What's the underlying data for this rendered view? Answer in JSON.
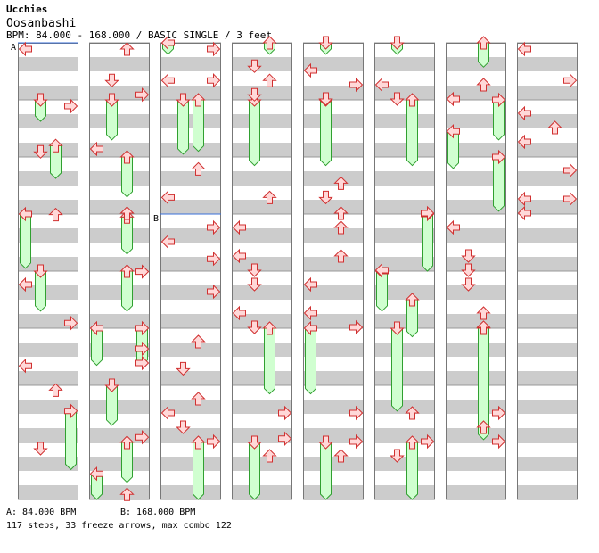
{
  "header": {
    "artist": "Ucchies",
    "title": "Oosanbashi",
    "meta": "BPM: 84.000 - 168.000 / BASIC SINGLE / 3 feet"
  },
  "footer": {
    "bpm_a": "A: 84.000 BPM",
    "bpm_b": "B: 168.000 BPM",
    "stats": "117 steps, 33 freeze arrows, max combo 122"
  },
  "chart_data": {
    "type": "step-chart",
    "columns": 8,
    "measures_per_column": 8,
    "beats_per_measure": 4,
    "lanes": [
      "left",
      "down",
      "up",
      "right"
    ],
    "bpm_changes": [
      {
        "label": "A",
        "bpm": 84.0,
        "column": 0,
        "measure": 0
      },
      {
        "label": "B",
        "bpm": 168.0,
        "column": 2,
        "measure": 3
      }
    ],
    "colors": {
      "arrow_fill": "#ffd8d8",
      "arrow_stroke": "#d03030",
      "freeze_fill": "#d0ffd0",
      "freeze_stroke": "#30a030",
      "stripe": "#cccccc",
      "bpm_marker": "#3a6fd8"
    },
    "freezes": [
      {
        "col": 0,
        "lane": 1,
        "start": 4.0,
        "end": 5.5
      },
      {
        "col": 0,
        "lane": 2,
        "start": 7.2,
        "end": 9.5
      },
      {
        "col": 0,
        "lane": 0,
        "start": 12.0,
        "end": 15.8
      },
      {
        "col": 0,
        "lane": 1,
        "start": 16.0,
        "end": 18.8
      },
      {
        "col": 0,
        "lane": 3,
        "start": 25.8,
        "end": 29.9
      },
      {
        "col": 1,
        "lane": 1,
        "start": 4.0,
        "end": 6.8
      },
      {
        "col": 1,
        "lane": 2,
        "start": 8.0,
        "end": 10.8
      },
      {
        "col": 1,
        "lane": 2,
        "start": 12.2,
        "end": 14.8
      },
      {
        "col": 1,
        "lane": 2,
        "start": 16.0,
        "end": 18.8
      },
      {
        "col": 1,
        "lane": 0,
        "start": 20.0,
        "end": 22.6
      },
      {
        "col": 1,
        "lane": 3,
        "start": 20.0,
        "end": 22.6
      },
      {
        "col": 1,
        "lane": 1,
        "start": 24.0,
        "end": 26.8
      },
      {
        "col": 1,
        "lane": 2,
        "start": 28.0,
        "end": 30.8
      },
      {
        "col": 1,
        "lane": 0,
        "start": 30.2,
        "end": 32.0
      },
      {
        "col": 2,
        "lane": 0,
        "start": 0.0,
        "end": 0.8
      },
      {
        "col": 2,
        "lane": 1,
        "start": 4.0,
        "end": 7.8
      },
      {
        "col": 2,
        "lane": 2,
        "start": 4.0,
        "end": 7.6
      },
      {
        "col": 2,
        "lane": 2,
        "start": 28.0,
        "end": 32.0
      },
      {
        "col": 3,
        "lane": 2,
        "start": 0.0,
        "end": 0.8
      },
      {
        "col": 3,
        "lane": 1,
        "start": 4.0,
        "end": 8.6
      },
      {
        "col": 3,
        "lane": 2,
        "start": 20.0,
        "end": 24.6
      },
      {
        "col": 3,
        "lane": 1,
        "start": 28.0,
        "end": 32.0
      },
      {
        "col": 4,
        "lane": 1,
        "start": 0.0,
        "end": 0.8
      },
      {
        "col": 4,
        "lane": 1,
        "start": 4.0,
        "end": 8.6
      },
      {
        "col": 4,
        "lane": 0,
        "start": 20.0,
        "end": 24.6
      },
      {
        "col": 4,
        "lane": 1,
        "start": 28.0,
        "end": 32.0
      },
      {
        "col": 5,
        "lane": 1,
        "start": 0.0,
        "end": 0.8
      },
      {
        "col": 5,
        "lane": 2,
        "start": 4.0,
        "end": 8.6
      },
      {
        "col": 5,
        "lane": 3,
        "start": 12.0,
        "end": 16.0
      },
      {
        "col": 5,
        "lane": 0,
        "start": 16.0,
        "end": 18.8
      },
      {
        "col": 5,
        "lane": 2,
        "start": 18.0,
        "end": 20.6
      },
      {
        "col": 5,
        "lane": 1,
        "start": 20.0,
        "end": 25.8
      },
      {
        "col": 5,
        "lane": 2,
        "start": 28.0,
        "end": 32.0
      },
      {
        "col": 6,
        "lane": 2,
        "start": 0.0,
        "end": 1.7
      },
      {
        "col": 6,
        "lane": 3,
        "start": 4.0,
        "end": 6.8
      },
      {
        "col": 6,
        "lane": 0,
        "start": 6.2,
        "end": 8.8
      },
      {
        "col": 6,
        "lane": 3,
        "start": 8.0,
        "end": 11.8
      },
      {
        "col": 6,
        "lane": 2,
        "start": 20.0,
        "end": 27.8
      }
    ],
    "arrows": [
      {
        "col": 0,
        "lane": 0,
        "beat": 0
      },
      {
        "col": 0,
        "lane": 3,
        "beat": 4
      },
      {
        "col": 0,
        "lane": 1,
        "beat": 7.2
      },
      {
        "col": 0,
        "lane": 2,
        "beat": 11.6
      },
      {
        "col": 0,
        "lane": 0,
        "beat": 16.5
      },
      {
        "col": 0,
        "lane": 3,
        "beat": 19.2
      },
      {
        "col": 0,
        "lane": 0,
        "beat": 22.2
      },
      {
        "col": 0,
        "lane": 2,
        "beat": 23.9
      },
      {
        "col": 0,
        "lane": 1,
        "beat": 28.0
      },
      {
        "col": 1,
        "lane": 2,
        "beat": 0
      },
      {
        "col": 1,
        "lane": 1,
        "beat": 2.2
      },
      {
        "col": 1,
        "lane": 3,
        "beat": 3.2
      },
      {
        "col": 1,
        "lane": 0,
        "beat": 7.0
      },
      {
        "col": 1,
        "lane": 2,
        "beat": 11.5
      },
      {
        "col": 1,
        "lane": 3,
        "beat": 15.6
      },
      {
        "col": 1,
        "lane": 3,
        "beat": 21.0
      },
      {
        "col": 1,
        "lane": 3,
        "beat": 22.0
      },
      {
        "col": 1,
        "lane": 3,
        "beat": 27.2
      },
      {
        "col": 1,
        "lane": 2,
        "beat": 31.2
      },
      {
        "col": 2,
        "lane": 3,
        "beat": 0
      },
      {
        "col": 2,
        "lane": 0,
        "beat": 2.2
      },
      {
        "col": 2,
        "lane": 3,
        "beat": 2.2
      },
      {
        "col": 2,
        "lane": 2,
        "beat": 8.4
      },
      {
        "col": 2,
        "lane": 0,
        "beat": 10.4
      },
      {
        "col": 2,
        "lane": 3,
        "beat": 12.5
      },
      {
        "col": 2,
        "lane": 0,
        "beat": 13.5
      },
      {
        "col": 2,
        "lane": 3,
        "beat": 14.7
      },
      {
        "col": 2,
        "lane": 3,
        "beat": 17.0
      },
      {
        "col": 2,
        "lane": 2,
        "beat": 20.5
      },
      {
        "col": 2,
        "lane": 1,
        "beat": 22.4
      },
      {
        "col": 2,
        "lane": 2,
        "beat": 24.5
      },
      {
        "col": 2,
        "lane": 0,
        "beat": 25.5
      },
      {
        "col": 2,
        "lane": 1,
        "beat": 26.5
      },
      {
        "col": 2,
        "lane": 3,
        "beat": 27.5
      },
      {
        "col": 3,
        "lane": 1,
        "beat": 1.2
      },
      {
        "col": 3,
        "lane": 2,
        "beat": 2.2
      },
      {
        "col": 3,
        "lane": 1,
        "beat": 3.2
      },
      {
        "col": 3,
        "lane": 2,
        "beat": 10.4
      },
      {
        "col": 3,
        "lane": 0,
        "beat": 12.5
      },
      {
        "col": 3,
        "lane": 0,
        "beat": 14.5
      },
      {
        "col": 3,
        "lane": 1,
        "beat": 15.5
      },
      {
        "col": 3,
        "lane": 1,
        "beat": 16.5
      },
      {
        "col": 3,
        "lane": 0,
        "beat": 18.5
      },
      {
        "col": 3,
        "lane": 1,
        "beat": 19.5
      },
      {
        "col": 3,
        "lane": 3,
        "beat": 27.3
      },
      {
        "col": 3,
        "lane": 2,
        "beat": 28.5
      },
      {
        "col": 3,
        "lane": 3,
        "beat": 25.5
      },
      {
        "col": 4,
        "lane": 0,
        "beat": 1.5
      },
      {
        "col": 4,
        "lane": 3,
        "beat": 2.5
      },
      {
        "col": 4,
        "lane": 1,
        "beat": 3.5
      },
      {
        "col": 4,
        "lane": 2,
        "beat": 9.4
      },
      {
        "col": 4,
        "lane": 1,
        "beat": 10.4
      },
      {
        "col": 4,
        "lane": 2,
        "beat": 11.5
      },
      {
        "col": 4,
        "lane": 2,
        "beat": 12.5
      },
      {
        "col": 4,
        "lane": 2,
        "beat": 14.5
      },
      {
        "col": 4,
        "lane": 0,
        "beat": 16.5
      },
      {
        "col": 4,
        "lane": 0,
        "beat": 18.5
      },
      {
        "col": 4,
        "lane": 3,
        "beat": 19.5
      },
      {
        "col": 4,
        "lane": 3,
        "beat": 25.5
      },
      {
        "col": 4,
        "lane": 3,
        "beat": 27.5
      },
      {
        "col": 4,
        "lane": 2,
        "beat": 28.5
      },
      {
        "col": 5,
        "lane": 0,
        "beat": 2.5
      },
      {
        "col": 5,
        "lane": 1,
        "beat": 3.5
      },
      {
        "col": 5,
        "lane": 3,
        "beat": 11.5
      },
      {
        "col": 5,
        "lane": 0,
        "beat": 15.5
      },
      {
        "col": 5,
        "lane": 3,
        "beat": 27.5
      },
      {
        "col": 5,
        "lane": 1,
        "beat": 28.5
      },
      {
        "col": 5,
        "lane": 2,
        "beat": 25.5
      },
      {
        "col": 6,
        "lane": 2,
        "beat": 2.5
      },
      {
        "col": 6,
        "lane": 0,
        "beat": 3.5
      },
      {
        "col": 6,
        "lane": 0,
        "beat": 12.5
      },
      {
        "col": 6,
        "lane": 1,
        "beat": 14.5
      },
      {
        "col": 6,
        "lane": 1,
        "beat": 15.5
      },
      {
        "col": 6,
        "lane": 1,
        "beat": 16.5
      },
      {
        "col": 6,
        "lane": 2,
        "beat": 18.5
      },
      {
        "col": 6,
        "lane": 2,
        "beat": 19.5
      },
      {
        "col": 6,
        "lane": 3,
        "beat": 25.5
      },
      {
        "col": 6,
        "lane": 2,
        "beat": 26.5
      },
      {
        "col": 6,
        "lane": 3,
        "beat": 27.5
      },
      {
        "col": 7,
        "lane": 0,
        "beat": 0
      },
      {
        "col": 7,
        "lane": 3,
        "beat": 2.2
      },
      {
        "col": 7,
        "lane": 0,
        "beat": 4.5
      },
      {
        "col": 7,
        "lane": 2,
        "beat": 5.5
      },
      {
        "col": 7,
        "lane": 0,
        "beat": 6.5
      },
      {
        "col": 7,
        "lane": 3,
        "beat": 8.5
      },
      {
        "col": 7,
        "lane": 0,
        "beat": 10.5
      },
      {
        "col": 7,
        "lane": 3,
        "beat": 10.5
      },
      {
        "col": 7,
        "lane": 0,
        "beat": 11.5
      }
    ]
  }
}
